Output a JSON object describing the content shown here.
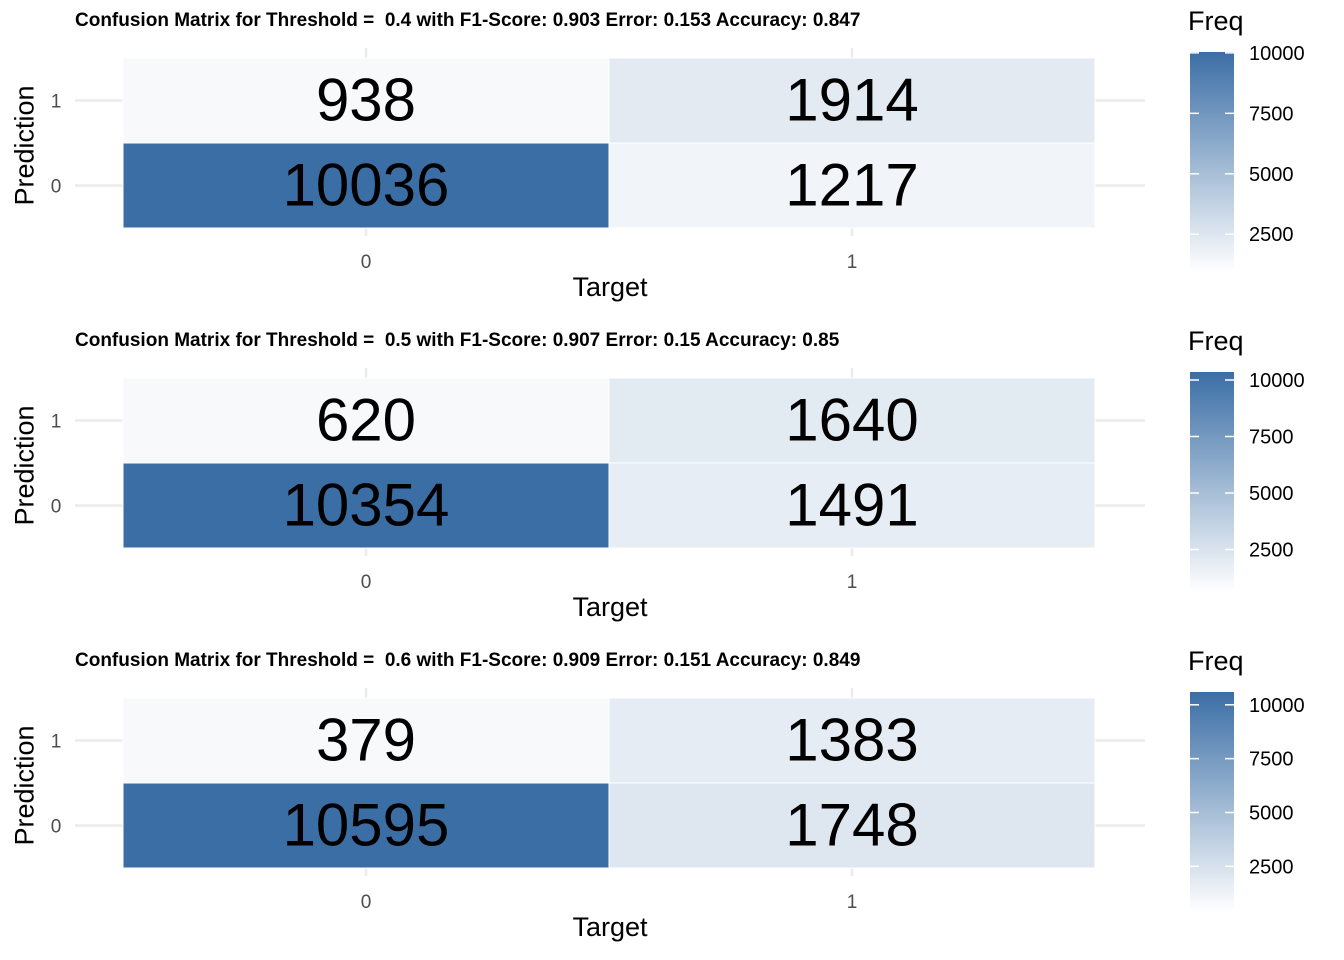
{
  "colors": {
    "low": "#ffffff",
    "high": "#3b6ea5",
    "grid": "#ebebeb",
    "axis_text": "#4d4d4d"
  },
  "chart_data": [
    {
      "type": "heatmap",
      "title": "Confusion Matrix for Threshold =  0.4 with F1-Score: 0.903 Error: 0.153 Accuracy: 0.847",
      "xlabel": "Target",
      "ylabel": "Prediction",
      "x_categories": [
        "0",
        "1"
      ],
      "y_categories": [
        "0",
        "1"
      ],
      "cells": [
        {
          "target": "0",
          "prediction": "1",
          "value": 938
        },
        {
          "target": "1",
          "prediction": "1",
          "value": 1914
        },
        {
          "target": "0",
          "prediction": "0",
          "value": 10036
        },
        {
          "target": "1",
          "prediction": "0",
          "value": 1217
        }
      ],
      "legend": {
        "title": "Freq",
        "ticks": [
          "2500",
          "5000",
          "7500",
          "10000"
        ],
        "range": [
          938,
          10036
        ]
      }
    },
    {
      "type": "heatmap",
      "title": "Confusion Matrix for Threshold =  0.5 with F1-Score: 0.907 Error: 0.15 Accuracy: 0.85",
      "xlabel": "Target",
      "ylabel": "Prediction",
      "x_categories": [
        "0",
        "1"
      ],
      "y_categories": [
        "0",
        "1"
      ],
      "cells": [
        {
          "target": "0",
          "prediction": "1",
          "value": 620
        },
        {
          "target": "1",
          "prediction": "1",
          "value": 1640
        },
        {
          "target": "0",
          "prediction": "0",
          "value": 10354
        },
        {
          "target": "1",
          "prediction": "0",
          "value": 1491
        }
      ],
      "legend": {
        "title": "Freq",
        "ticks": [
          "2500",
          "5000",
          "7500",
          "10000"
        ],
        "range": [
          620,
          10354
        ]
      }
    },
    {
      "type": "heatmap",
      "title": "Confusion Matrix for Threshold =  0.6 with F1-Score: 0.909 Error: 0.151 Accuracy: 0.849",
      "xlabel": "Target",
      "ylabel": "Prediction",
      "x_categories": [
        "0",
        "1"
      ],
      "y_categories": [
        "0",
        "1"
      ],
      "cells": [
        {
          "target": "0",
          "prediction": "1",
          "value": 379
        },
        {
          "target": "1",
          "prediction": "1",
          "value": 1383
        },
        {
          "target": "0",
          "prediction": "0",
          "value": 10595
        },
        {
          "target": "1",
          "prediction": "0",
          "value": 1748
        }
      ],
      "legend": {
        "title": "Freq",
        "ticks": [
          "2500",
          "5000",
          "7500",
          "10000"
        ],
        "range": [
          379,
          10595
        ]
      }
    }
  ]
}
